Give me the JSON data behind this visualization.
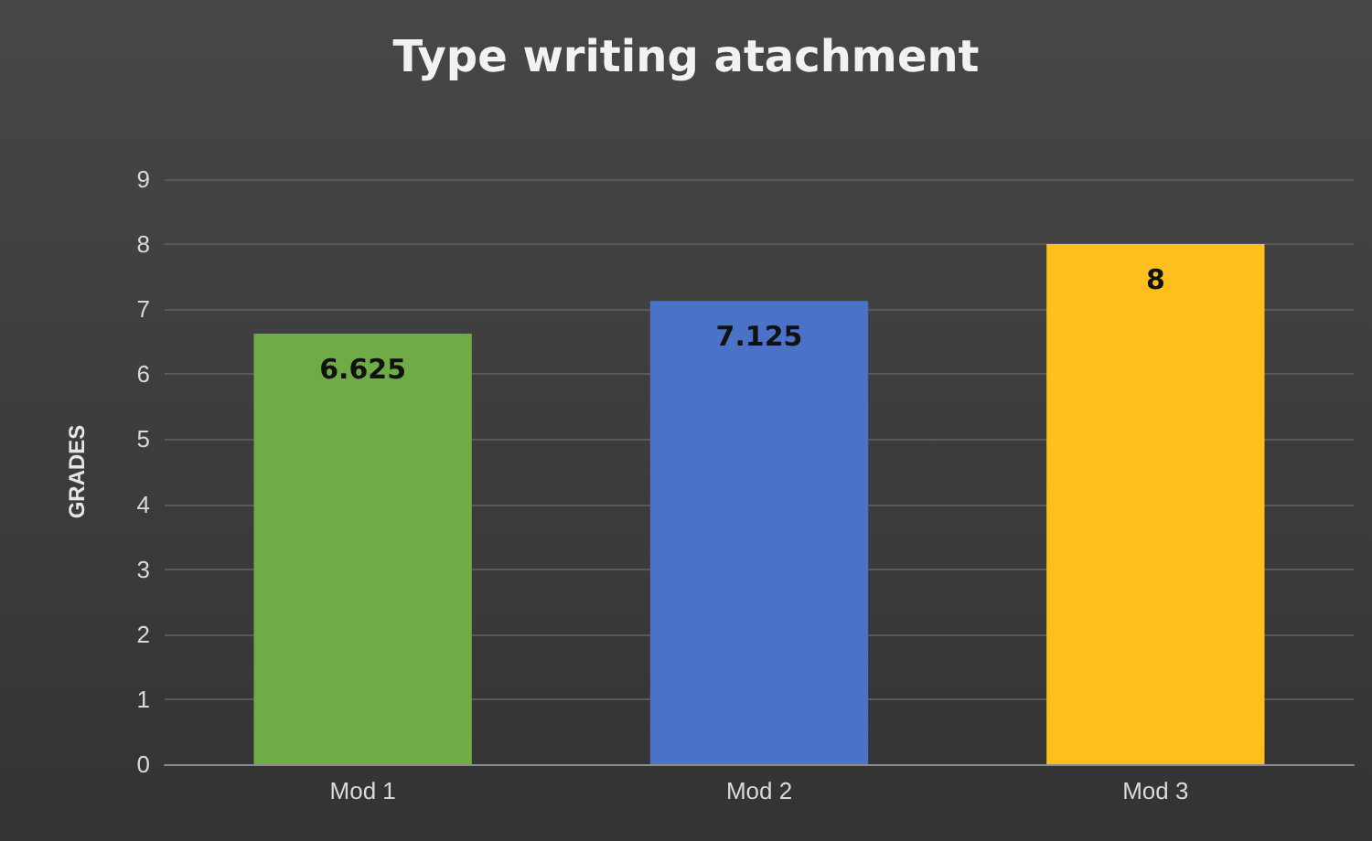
{
  "chart_data": {
    "type": "bar",
    "title": "Type writing atachment",
    "ylabel": "GRADES",
    "categories": [
      "Mod 1",
      "Mod 2",
      "Mod 3"
    ],
    "values": [
      6.625,
      7.125,
      8
    ],
    "colors": [
      "#6fac46",
      "#4a73c8",
      "#fdbf1d"
    ],
    "ylim": [
      0,
      9
    ],
    "yticks": [
      0,
      1,
      2,
      3,
      4,
      5,
      6,
      7,
      8,
      9
    ],
    "grid": "y",
    "data_labels": true
  }
}
